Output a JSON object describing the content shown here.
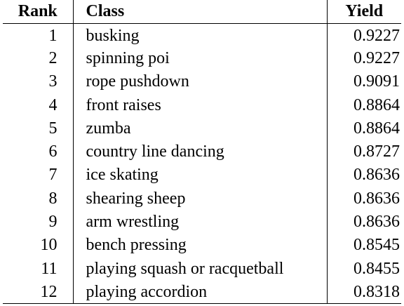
{
  "table": {
    "headers": {
      "rank": "Rank",
      "class": "Class",
      "yield": "Yield"
    },
    "rows": [
      {
        "rank": "1",
        "class": "busking",
        "yield": "0.9227"
      },
      {
        "rank": "2",
        "class": "spinning poi",
        "yield": "0.9227"
      },
      {
        "rank": "3",
        "class": "rope pushdown",
        "yield": "0.9091"
      },
      {
        "rank": "4",
        "class": "front raises",
        "yield": "0.8864"
      },
      {
        "rank": "5",
        "class": "zumba",
        "yield": "0.8864"
      },
      {
        "rank": "6",
        "class": "country line dancing",
        "yield": "0.8727"
      },
      {
        "rank": "7",
        "class": "ice skating",
        "yield": "0.8636"
      },
      {
        "rank": "8",
        "class": "shearing sheep",
        "yield": "0.8636"
      },
      {
        "rank": "9",
        "class": "arm wrestling",
        "yield": "0.8636"
      },
      {
        "rank": "10",
        "class": "bench pressing",
        "yield": "0.8545"
      },
      {
        "rank": "11",
        "class": "playing squash or racquetball",
        "yield": "0.8455"
      },
      {
        "rank": "12",
        "class": "playing accordion",
        "yield": "0.8318"
      }
    ]
  }
}
